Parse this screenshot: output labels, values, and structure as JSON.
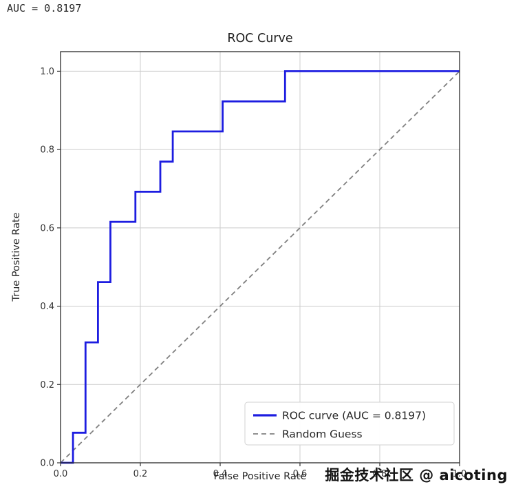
{
  "header": {
    "auc_text": "AUC = 0.8197"
  },
  "watermark": {
    "text": "掘金技术社区 @ aicoting"
  },
  "chart_data": {
    "type": "line",
    "title": "ROC Curve",
    "xlabel": "False Positive Rate",
    "ylabel": "True Positive Rate",
    "xlim": [
      0.0,
      1.0
    ],
    "ylim": [
      0.0,
      1.05
    ],
    "grid": true,
    "grid_color": "#cccccc",
    "spine_color": "#2a2a2a",
    "tick_label_color": "#333333",
    "legend_position": "lower right",
    "auc": 0.8197,
    "xticks": {
      "values": [
        0.0,
        0.2,
        0.4,
        0.6,
        0.8,
        1.0
      ],
      "labels": [
        "0.0",
        "0.2",
        "0.4",
        "0.6",
        "0.8",
        "1.0"
      ]
    },
    "yticks": {
      "values": [
        0.0,
        0.2,
        0.4,
        0.6,
        0.8,
        1.0
      ],
      "labels": [
        "0.0",
        "0.2",
        "0.4",
        "0.6",
        "0.8",
        "1.0"
      ]
    },
    "series": [
      {
        "name": "ROC curve (AUC = 0.8197)",
        "color": "#1d1de0",
        "linewidth": 2.8,
        "dash": null,
        "points": [
          [
            0.0,
            0.0
          ],
          [
            0.0312,
            0.0
          ],
          [
            0.0312,
            0.0769
          ],
          [
            0.0625,
            0.0769
          ],
          [
            0.0625,
            0.3077
          ],
          [
            0.0938,
            0.3077
          ],
          [
            0.0938,
            0.4615
          ],
          [
            0.125,
            0.4615
          ],
          [
            0.125,
            0.6154
          ],
          [
            0.1875,
            0.6154
          ],
          [
            0.1875,
            0.6923
          ],
          [
            0.25,
            0.6923
          ],
          [
            0.25,
            0.7692
          ],
          [
            0.2812,
            0.7692
          ],
          [
            0.2812,
            0.8462
          ],
          [
            0.4062,
            0.8462
          ],
          [
            0.4062,
            0.9231
          ],
          [
            0.5625,
            0.9231
          ],
          [
            0.5625,
            1.0
          ],
          [
            1.0,
            1.0
          ]
        ]
      },
      {
        "name": "Random Guess",
        "color": "#808080",
        "linewidth": 1.8,
        "dash": "7 5",
        "points": [
          [
            0.0,
            0.0
          ],
          [
            1.0,
            1.0
          ]
        ]
      }
    ]
  }
}
